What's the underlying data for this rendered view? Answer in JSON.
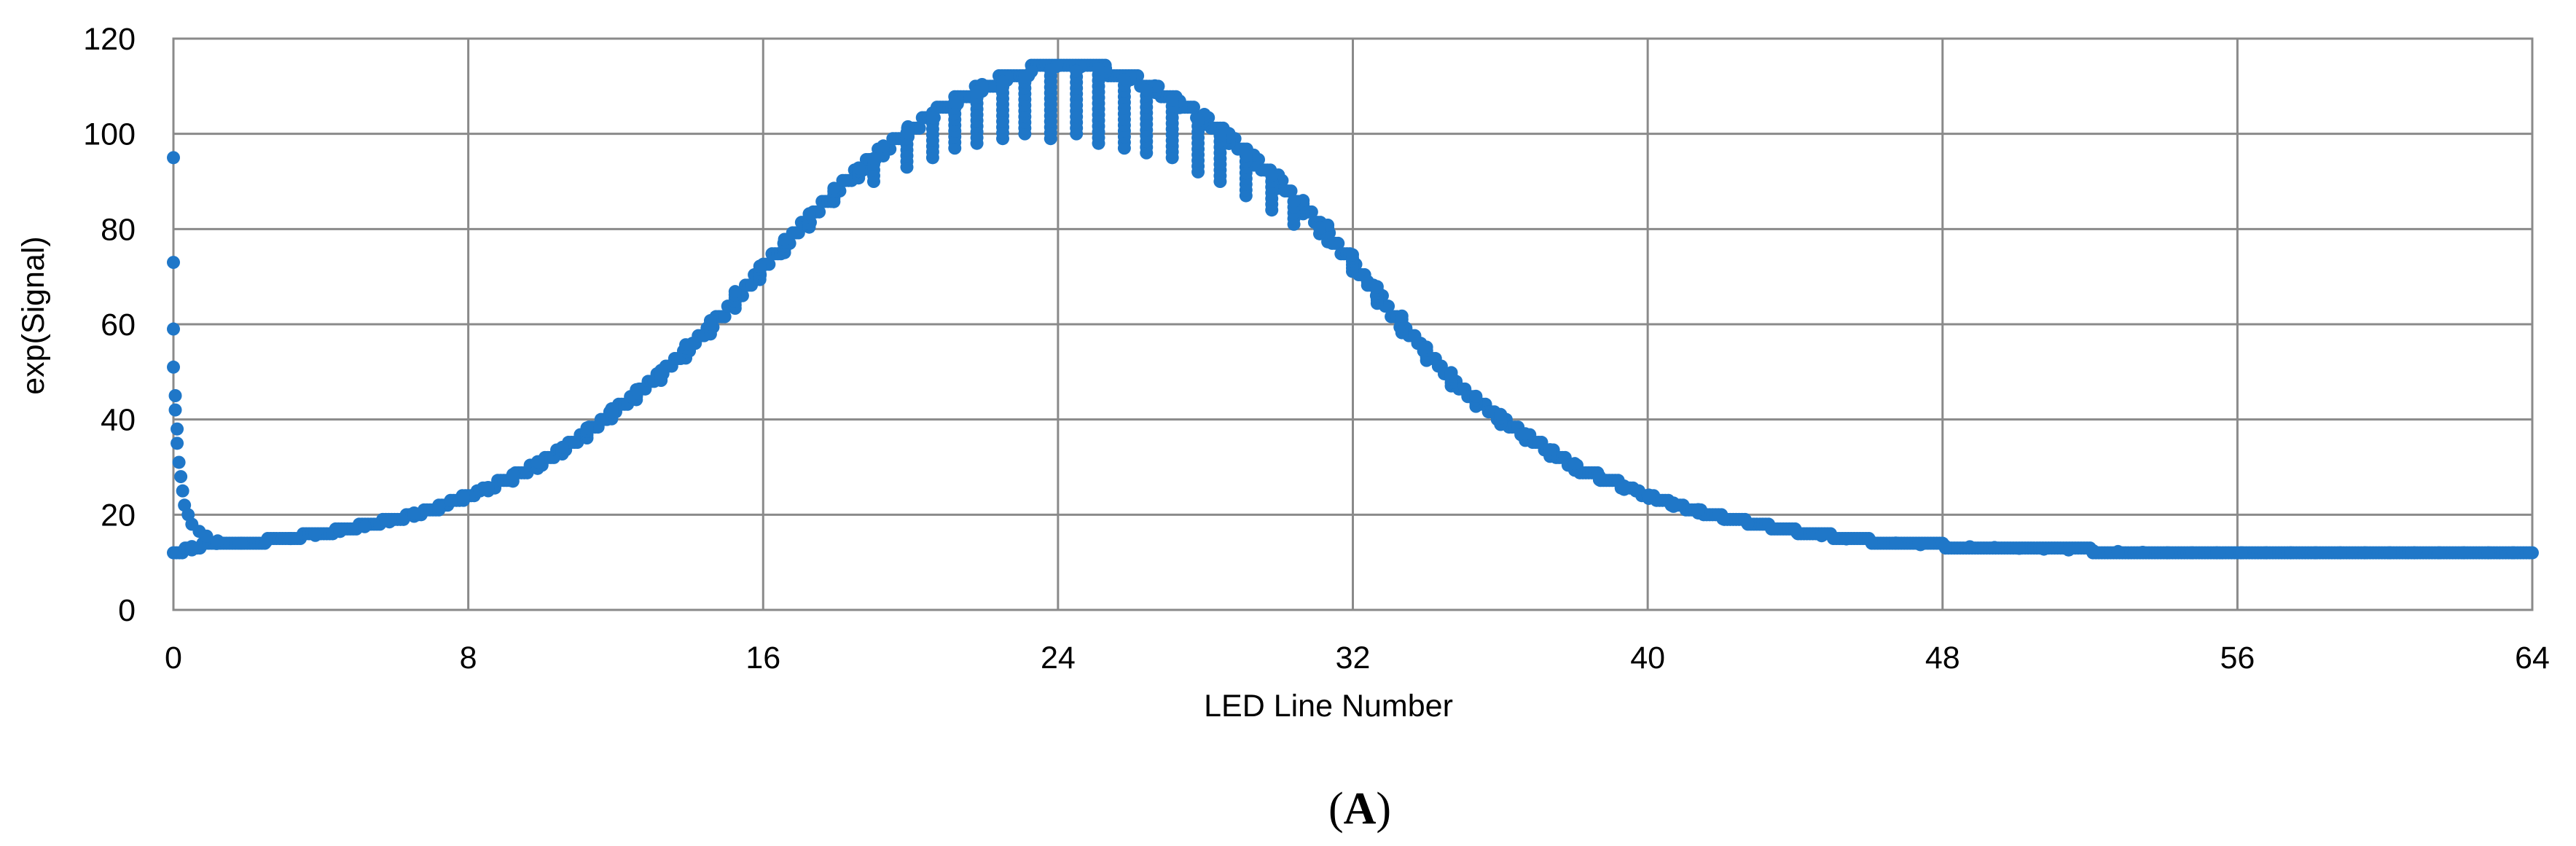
{
  "chart_data": {
    "type": "scatter",
    "title": "",
    "xlabel": "LED Line Number",
    "ylabel": "exp(Signal)",
    "xlim": [
      0,
      64
    ],
    "ylim": [
      0,
      120
    ],
    "x_ticks": [
      "0",
      "8",
      "16",
      "24",
      "32",
      "40",
      "48",
      "56",
      "64"
    ],
    "y_ticks": [
      "0",
      "20",
      "40",
      "60",
      "80",
      "100",
      "120"
    ],
    "grid": true,
    "legend": "none",
    "marker_color": "#1f77c8",
    "panel_label": {
      "open": "(",
      "letter": "A",
      "close": ")"
    },
    "profile": {
      "description_points": [
        [
          0,
          12
        ],
        [
          0.5,
          13
        ],
        [
          1,
          14
        ],
        [
          2,
          14
        ],
        [
          3,
          15
        ],
        [
          4,
          16
        ],
        [
          5,
          17.5
        ],
        [
          6,
          19
        ],
        [
          7,
          21
        ],
        [
          8,
          24
        ],
        [
          9,
          27
        ],
        [
          10,
          31
        ],
        [
          11,
          36
        ],
        [
          12,
          42
        ],
        [
          13,
          48
        ],
        [
          14,
          55
        ],
        [
          15,
          63
        ],
        [
          16,
          72
        ],
        [
          17,
          80
        ],
        [
          18,
          88
        ],
        [
          19,
          95
        ],
        [
          20,
          101
        ],
        [
          21,
          106
        ],
        [
          22,
          110
        ],
        [
          23,
          113
        ],
        [
          24,
          114.5
        ],
        [
          25,
          114
        ],
        [
          26,
          112
        ],
        [
          27,
          108
        ],
        [
          28,
          103
        ],
        [
          29,
          97
        ],
        [
          30,
          90
        ],
        [
          31,
          82
        ],
        [
          32,
          73
        ],
        [
          33,
          63
        ],
        [
          34,
          54
        ],
        [
          35,
          46
        ],
        [
          36,
          40
        ],
        [
          37,
          35
        ],
        [
          38,
          30
        ],
        [
          39,
          27
        ],
        [
          40,
          24
        ],
        [
          41,
          21.5
        ],
        [
          42,
          19.5
        ],
        [
          43,
          18
        ],
        [
          44,
          16.5
        ],
        [
          45,
          15.5
        ],
        [
          46,
          14.5
        ],
        [
          47,
          14
        ],
        [
          48,
          13.5
        ],
        [
          50,
          13
        ],
        [
          52,
          12.5
        ],
        [
          54,
          12
        ],
        [
          64,
          12
        ]
      ]
    },
    "spike_points": [
      [
        0,
        95
      ],
      [
        0,
        73
      ],
      [
        0,
        59
      ],
      [
        0,
        51
      ],
      [
        0.05,
        45
      ],
      [
        0.05,
        42
      ],
      [
        0.1,
        38
      ],
      [
        0.1,
        35
      ],
      [
        0.15,
        31
      ],
      [
        0.2,
        28
      ],
      [
        0.25,
        25
      ],
      [
        0.3,
        22
      ],
      [
        0.4,
        20
      ],
      [
        0.5,
        18
      ],
      [
        0.7,
        16.5
      ],
      [
        0.9,
        15.5
      ],
      [
        1.2,
        14.5
      ]
    ],
    "dip_points": [
      [
        18.4,
        92
      ],
      [
        19.0,
        90
      ],
      [
        19.9,
        93
      ],
      [
        20.6,
        95
      ],
      [
        21.2,
        97
      ],
      [
        21.8,
        98
      ],
      [
        22.5,
        99
      ],
      [
        23.1,
        100
      ],
      [
        23.8,
        99
      ],
      [
        24.5,
        100
      ],
      [
        25.1,
        98
      ],
      [
        25.8,
        97
      ],
      [
        26.4,
        96
      ],
      [
        27.1,
        95
      ],
      [
        27.8,
        92
      ],
      [
        28.4,
        90
      ],
      [
        29.1,
        87
      ],
      [
        29.8,
        84
      ],
      [
        30.4,
        81
      ],
      [
        31.1,
        79
      ],
      [
        31.8,
        75
      ],
      [
        32.4,
        69
      ]
    ]
  }
}
